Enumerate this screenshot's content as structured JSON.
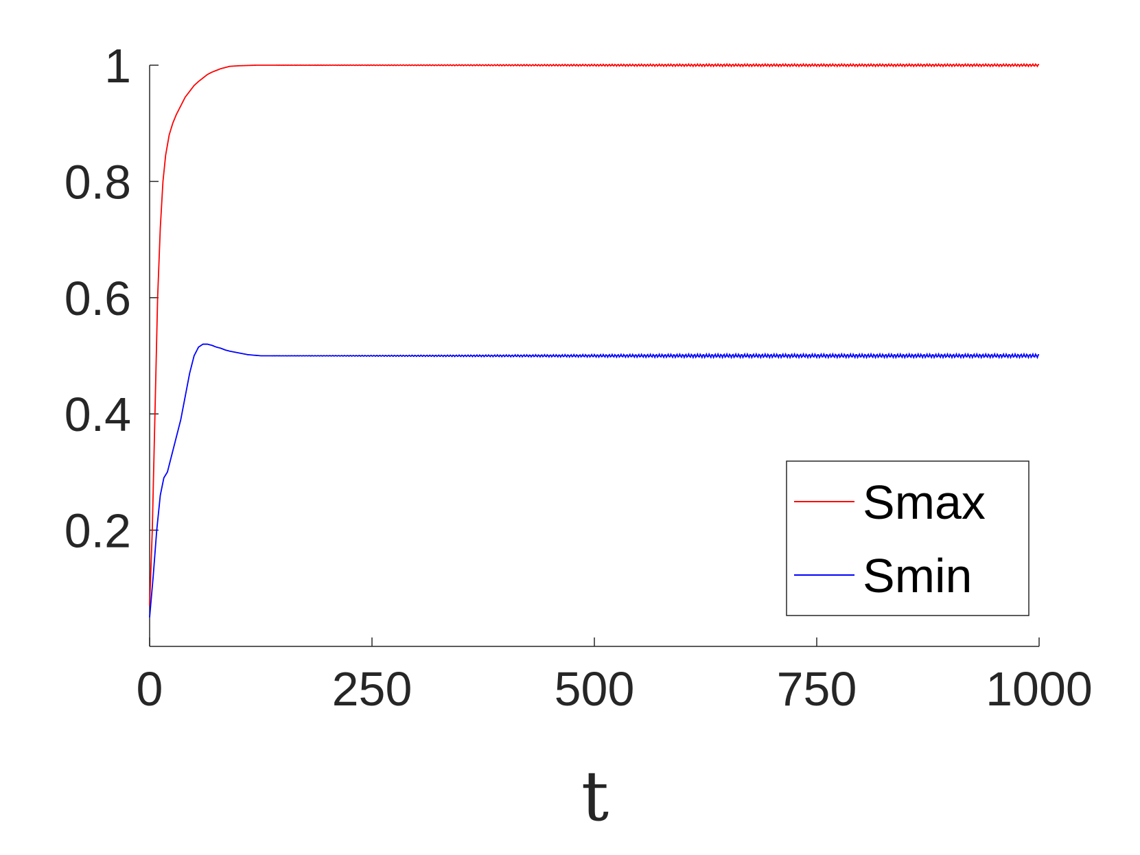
{
  "chart_data": {
    "type": "line",
    "title": "",
    "xlabel": "t",
    "ylabel": "",
    "xlim": [
      0,
      1000
    ],
    "ylim": [
      0,
      1
    ],
    "xticks": [
      "0",
      "250",
      "500",
      "750",
      "1000"
    ],
    "yticks": [
      "0.2",
      "0.4",
      "0.6",
      "0.8",
      "1"
    ],
    "grid": false,
    "legend": "bottom-right",
    "series": [
      {
        "name": "Smax",
        "color": "#ff0000",
        "points": [
          [
            0,
            0.07
          ],
          [
            3,
            0.2
          ],
          [
            6,
            0.4
          ],
          [
            9,
            0.6
          ],
          [
            12,
            0.72
          ],
          [
            15,
            0.8
          ],
          [
            18,
            0.845
          ],
          [
            22,
            0.88
          ],
          [
            26,
            0.9
          ],
          [
            30,
            0.915
          ],
          [
            35,
            0.93
          ],
          [
            40,
            0.945
          ],
          [
            45,
            0.955
          ],
          [
            50,
            0.965
          ],
          [
            55,
            0.972
          ],
          [
            60,
            0.978
          ],
          [
            65,
            0.984
          ],
          [
            70,
            0.988
          ],
          [
            75,
            0.991
          ],
          [
            80,
            0.994
          ],
          [
            85,
            0.996
          ],
          [
            90,
            0.998
          ],
          [
            100,
            0.999
          ],
          [
            120,
            1.0
          ],
          [
            1000,
            1.0
          ]
        ],
        "oscillation": 0.002
      },
      {
        "name": "Smin",
        "color": "#0000ff",
        "points": [
          [
            0,
            0.05
          ],
          [
            4,
            0.12
          ],
          [
            8,
            0.2
          ],
          [
            12,
            0.26
          ],
          [
            16,
            0.29
          ],
          [
            20,
            0.3
          ],
          [
            25,
            0.33
          ],
          [
            30,
            0.36
          ],
          [
            35,
            0.39
          ],
          [
            40,
            0.43
          ],
          [
            45,
            0.47
          ],
          [
            50,
            0.5
          ],
          [
            55,
            0.515
          ],
          [
            60,
            0.52
          ],
          [
            65,
            0.52
          ],
          [
            70,
            0.518
          ],
          [
            75,
            0.515
          ],
          [
            80,
            0.513
          ],
          [
            85,
            0.51
          ],
          [
            90,
            0.508
          ],
          [
            100,
            0.505
          ],
          [
            110,
            0.502
          ],
          [
            125,
            0.5
          ],
          [
            1000,
            0.5
          ]
        ],
        "oscillation": 0.003
      }
    ]
  }
}
